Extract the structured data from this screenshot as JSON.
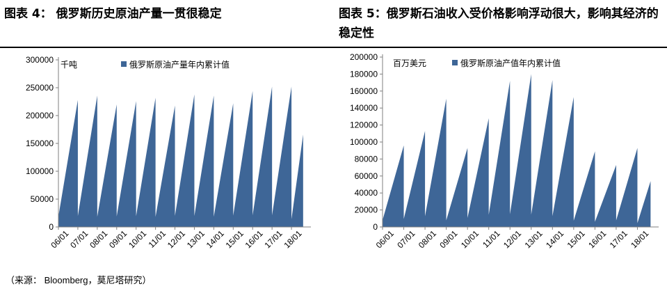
{
  "left_title": "图表 4：  俄罗斯历史原油产量一贯很稳定",
  "right_title": "图表  5：俄罗斯石油收入受价格影响浮动很大，影响其经济的稳定性",
  "source": "（来源： Bloomberg，莫尼塔研究）",
  "colors": {
    "series": "#3E6697",
    "axis": "#7f7f7f",
    "rule": "#000000"
  },
  "chart_data": [
    {
      "type": "area",
      "unit_label": "千吨",
      "ylim": [
        0,
        300000
      ],
      "yticks": [
        0,
        50000,
        100000,
        150000,
        200000,
        250000,
        300000
      ],
      "ytick_labels": [
        "0",
        "50000",
        "100000",
        "150000",
        "200000",
        "250000",
        "300000"
      ],
      "xtick_labels": [
        "06/01",
        "07/01",
        "08/01",
        "09/01",
        "10/01",
        "11/01",
        "12/01",
        "13/01",
        "14/01",
        "15/01",
        "16/01",
        "17/01",
        "18/01"
      ],
      "grid": false,
      "legend_position": "top",
      "series": [
        {
          "name": "俄罗斯原油产量年内累计值",
          "peaks": [
            228000,
            236000,
            220000,
            226000,
            232000,
            218000,
            238000,
            236000,
            222000,
            244000,
            252000,
            252000
          ],
          "last_value": 166000
        }
      ]
    },
    {
      "type": "area",
      "unit_label": "百万美元",
      "ylim": [
        0,
        200000
      ],
      "yticks": [
        0,
        20000,
        40000,
        60000,
        80000,
        100000,
        120000,
        140000,
        160000,
        180000,
        200000
      ],
      "ytick_labels": [
        "0",
        "20000",
        "40000",
        "60000",
        "80000",
        "100000",
        "120000",
        "140000",
        "160000",
        "180000",
        "200000"
      ],
      "xtick_labels": [
        "06/01",
        "07/01",
        "08/01",
        "09/01",
        "10/01",
        "11/01",
        "12/01",
        "13/01",
        "14/01",
        "15/01",
        "16/01",
        "17/01",
        "18/01"
      ],
      "grid": false,
      "legend_position": "top",
      "series": [
        {
          "name": "俄罗斯原油产值年内累计值",
          "peaks": [
            96000,
            113000,
            151000,
            93000,
            128000,
            172000,
            180000,
            173000,
            153000,
            89000,
            73000,
            93000
          ],
          "last_value": 54000
        }
      ]
    }
  ]
}
